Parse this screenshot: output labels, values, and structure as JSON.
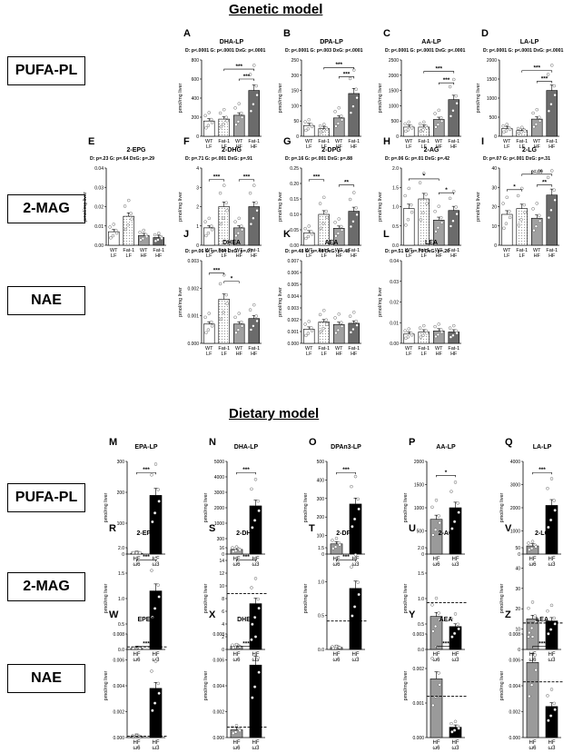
{
  "titles": {
    "genetic": "Genetic model",
    "dietary": "Dietary model"
  },
  "row_labels": {
    "r1": "PUFA-PL",
    "r2": "2-MAG",
    "r3": "NAE",
    "r4": "PUFA-PL",
    "r5": "2-MAG",
    "r6": "NAE"
  },
  "chart_data": [
    {
      "letter": "A",
      "type": "bar",
      "title": "DHA-LP",
      "stats": "D: p<.0001   G: p<.0001   DxG: p<.0001",
      "ylabel": "pmol/mg liver",
      "yticks": [
        "0",
        "200",
        "400",
        "600",
        "800"
      ],
      "ylim": [
        0,
        800
      ],
      "categories": [
        "WT LF",
        "Fat-1 LF",
        "WT HF",
        "Fat-1 HF"
      ],
      "values": [
        160,
        180,
        220,
        480
      ],
      "sig": [
        {
          "label": "***",
          "from": 2,
          "to": 3,
          "level": 0.75
        },
        {
          "label": "***",
          "from": 1,
          "to": 3,
          "level": 0.88
        }
      ]
    },
    {
      "letter": "B",
      "type": "bar",
      "title": "DPA-LP",
      "stats": "D: p<.0001   G: p=.003   DxG: p<.0001",
      "ylabel": "pmol/mg liver",
      "yticks": [
        "0",
        "50",
        "100",
        "150",
        "200",
        "250"
      ],
      "ylim": [
        0,
        250
      ],
      "categories": [
        "WT LF",
        "Fat-1 LF",
        "WT HF",
        "Fat-1 HF"
      ],
      "values": [
        35,
        25,
        60,
        140
      ],
      "sig": [
        {
          "label": "***",
          "from": 2,
          "to": 3,
          "level": 0.78
        },
        {
          "label": "***",
          "from": 1,
          "to": 3,
          "level": 0.9
        }
      ]
    },
    {
      "letter": "C",
      "type": "bar",
      "title": "AA-LP",
      "stats": "D: p<.0001   G: p<.0001   DxG: p<.0001",
      "ylabel": "pmol/mg liver",
      "yticks": [
        "0",
        "500",
        "1000",
        "1500",
        "2000",
        "2500"
      ],
      "ylim": [
        0,
        2500
      ],
      "categories": [
        "WT LF",
        "Fat-1 LF",
        "WT HF",
        "Fat-1 HF"
      ],
      "values": [
        300,
        300,
        550,
        1200
      ],
      "sig": [
        {
          "label": "***",
          "from": 2,
          "to": 3,
          "level": 0.7
        },
        {
          "label": "***",
          "from": 1,
          "to": 3,
          "level": 0.85
        }
      ]
    },
    {
      "letter": "D",
      "type": "bar",
      "title": "LA-LP",
      "stats": "D: p<.0001   G: p<.0001   DxG: p<.0001",
      "ylabel": "pmol/mg liver",
      "yticks": [
        "0",
        "500",
        "1000",
        "1500",
        "2000"
      ],
      "ylim": [
        0,
        2000
      ],
      "categories": [
        "WT LF",
        "Fat-1 LF",
        "WT HF",
        "Fat-1 HF"
      ],
      "values": [
        200,
        150,
        450,
        1200
      ],
      "sig": [
        {
          "label": "***",
          "from": 2,
          "to": 3,
          "level": 0.72
        },
        {
          "label": "***",
          "from": 1,
          "to": 3,
          "level": 0.86
        }
      ]
    },
    {
      "letter": "E",
      "type": "bar",
      "title": "2-EPG",
      "stats": "D: p=.23   G: p=.64   DxG: p=.29",
      "ylabel": "pmol/mg liver",
      "yticks": [
        "0.00",
        "0.01",
        "0.02",
        "0.03",
        "0.04"
      ],
      "ylim": [
        0,
        0.04
      ],
      "categories": [
        "WT LF",
        "Fat-1 LF",
        "WT HF",
        "Fat-1 HF"
      ],
      "values": [
        0.007,
        0.015,
        0.005,
        0.004
      ],
      "sig": []
    },
    {
      "letter": "F",
      "type": "bar",
      "title": "2-DHG",
      "stats": "D: p=.71   G: p<.001   DxG: p=.91",
      "ylabel": "pmol/mg liver",
      "yticks": [
        "0",
        "1",
        "2",
        "3",
        "4"
      ],
      "ylim": [
        0,
        4
      ],
      "categories": [
        "WT LF",
        "Fat-1 LF",
        "WT HF",
        "Fat-1 HF"
      ],
      "values": [
        0.9,
        2.0,
        0.9,
        2.0
      ],
      "sig": [
        {
          "label": "***",
          "from": 0,
          "to": 1,
          "level": 0.85
        },
        {
          "label": "***",
          "from": 2,
          "to": 3,
          "level": 0.85
        }
      ]
    },
    {
      "letter": "G",
      "type": "bar",
      "title": "2-DPG",
      "stats": "D: p=.16   G: p<.001   DxG: p=.88",
      "ylabel": "pmol/mg liver",
      "yticks": [
        "0.00",
        "0.05",
        "0.10",
        "0.15",
        "0.20",
        "0.25"
      ],
      "ylim": [
        0,
        0.25
      ],
      "categories": [
        "WT LF",
        "Fat-1 LF",
        "WT HF",
        "Fat-1 HF"
      ],
      "values": [
        0.04,
        0.1,
        0.055,
        0.11
      ],
      "sig": [
        {
          "label": "***",
          "from": 0,
          "to": 1,
          "level": 0.85
        },
        {
          "label": "**",
          "from": 2,
          "to": 3,
          "level": 0.78
        }
      ]
    },
    {
      "letter": "H",
      "type": "bar",
      "title": "2-AG",
      "stats": "D: p=.06   G: p=.01   DxG: p=.42",
      "ylabel": "pmol/mg liver",
      "yticks": [
        "0.0",
        "0.5",
        "1.0",
        "1.5",
        "2.0"
      ],
      "ylim": [
        0,
        2
      ],
      "categories": [
        "WT LF",
        "Fat-1 LF",
        "WT HF",
        "Fat-1 HF"
      ],
      "values": [
        0.95,
        1.2,
        0.65,
        0.9
      ],
      "sig": [
        {
          "label": "*",
          "from": 0,
          "to": 2,
          "level": 0.86
        },
        {
          "label": "*",
          "from": 2,
          "to": 3,
          "level": 0.68
        }
      ]
    },
    {
      "letter": "I",
      "type": "bar",
      "title": "2-LG",
      "stats": "D: p=.07   G: p<.001   DxG: p=.31",
      "ylabel": "pmol/mg liver",
      "yticks": [
        "0",
        "10",
        "20",
        "30",
        "40"
      ],
      "ylim": [
        0,
        40
      ],
      "categories": [
        "WT LF",
        "Fat-1 LF",
        "WT HF",
        "Fat-1 HF"
      ],
      "values": [
        16,
        19,
        14,
        26
      ],
      "sig": [
        {
          "label": "*",
          "from": 0,
          "to": 1,
          "level": 0.72
        },
        {
          "label": "**",
          "from": 2,
          "to": 3,
          "level": 0.78
        },
        {
          "label": "p=.09",
          "from": 1,
          "to": 3,
          "level": 0.92
        }
      ]
    },
    {
      "letter": "J",
      "type": "bar",
      "title": "DHEA",
      "stats": "D: p=.06   G: p=.004   DxG: p=.07",
      "ylabel": "pmol/mg liver",
      "yticks": [
        "0.000",
        "0.001",
        "0.002",
        "0.003"
      ],
      "ylim": [
        0,
        0.003
      ],
      "categories": [
        "WT LF",
        "Fat-1 LF",
        "WT HF",
        "Fat-1 HF"
      ],
      "values": [
        0.0007,
        0.0016,
        0.0007,
        0.0009
      ],
      "sig": [
        {
          "label": "***",
          "from": 0,
          "to": 1,
          "level": 0.85
        },
        {
          "label": "*",
          "from": 1,
          "to": 2,
          "level": 0.75
        }
      ]
    },
    {
      "letter": "K",
      "type": "bar",
      "title": "AEA",
      "stats": "D: p=.48   G: p=.48   DxG: p=.48",
      "ylabel": "pmol/mg liver",
      "yticks": [
        "0.000",
        "0.001",
        "0.002",
        "0.003",
        "0.004",
        "0.005",
        "0.006",
        "0.007"
      ],
      "ylim": [
        0,
        0.007
      ],
      "categories": [
        "WT LF",
        "Fat-1 LF",
        "WT HF",
        "Fat-1 HF"
      ],
      "values": [
        0.0012,
        0.0018,
        0.0016,
        0.0017
      ],
      "sig": []
    },
    {
      "letter": "L",
      "type": "bar",
      "title": "LEA",
      "stats": "D: p=.51   G: p=.70   DxG: p=.26",
      "ylabel": "pmol/mg liver",
      "yticks": [
        "0.00",
        "0.01",
        "0.02",
        "0.03",
        "0.04"
      ],
      "ylim": [
        0,
        0.04
      ],
      "categories": [
        "WT LF",
        "Fat-1 LF",
        "WT HF",
        "Fat-1 HF"
      ],
      "values": [
        0.0045,
        0.0055,
        0.006,
        0.0055
      ],
      "sig": []
    },
    {
      "letter": "M",
      "type": "bar",
      "title": "EPA-LP",
      "ylabel": "pmol/mg liver",
      "yticks": [
        "0",
        "100",
        "200",
        "300"
      ],
      "ylim": [
        0,
        300
      ],
      "categories": [
        "HF ω6",
        "HF ω3"
      ],
      "values": [
        2,
        190
      ],
      "sig": [
        {
          "label": "***",
          "from": 0,
          "to": 1,
          "level": 0.88
        }
      ]
    },
    {
      "letter": "N",
      "type": "bar",
      "title": "DHA-LP",
      "ylabel": "pmol/mg liver",
      "yticks": [
        "0",
        "300",
        "1000",
        "2000",
        "3000",
        "4000",
        "5000"
      ],
      "ylim": [
        0,
        5000
      ],
      "categories": [
        "HF ω6",
        "HF ω3"
      ],
      "values": [
        250,
        2600
      ],
      "sig": [
        {
          "label": "***",
          "from": 0,
          "to": 1,
          "level": 0.88
        }
      ]
    },
    {
      "letter": "O",
      "type": "bar",
      "title": "DPAn3-LP",
      "ylabel": "pmol/mg liver",
      "yticks": [
        "0",
        "100",
        "200",
        "300",
        "400",
        "500"
      ],
      "ylim": [
        0,
        500
      ],
      "categories": [
        "HF ω6",
        "HF ω3"
      ],
      "values": [
        55,
        270
      ],
      "sig": [
        {
          "label": "***",
          "from": 0,
          "to": 1,
          "level": 0.88
        }
      ]
    },
    {
      "letter": "P",
      "type": "bar",
      "title": "AA-LP",
      "ylabel": "pmol/mg liver",
      "yticks": [
        "0",
        "500",
        "1000",
        "1500",
        "2000"
      ],
      "ylim": [
        0,
        2000
      ],
      "categories": [
        "HF ω6",
        "HF ω3"
      ],
      "values": [
        750,
        1000
      ],
      "sig": [
        {
          "label": "*",
          "from": 0,
          "to": 1,
          "level": 0.85
        }
      ]
    },
    {
      "letter": "Q",
      "type": "bar",
      "title": "LA-LP",
      "ylabel": "pmol/mg liver",
      "yticks": [
        "0",
        "1000",
        "2000",
        "3000",
        "4000"
      ],
      "ylim": [
        0,
        4000
      ],
      "categories": [
        "HF ω6",
        "HF ω3"
      ],
      "values": [
        350,
        2100
      ],
      "sig": [
        {
          "label": "***",
          "from": 0,
          "to": 1,
          "level": 0.88
        }
      ]
    },
    {
      "letter": "R",
      "type": "bar",
      "title": "2-EPG",
      "ylabel": "pmol/mg liver",
      "yticks": [
        "0.0",
        "0.5",
        "1.0",
        "1.5",
        "2.0"
      ],
      "ylim": [
        0,
        2.0
      ],
      "categories": [
        "HF ω6",
        "HF ω3"
      ],
      "values": [
        0.02,
        1.15
      ],
      "ref": 0.05,
      "sig": [
        {
          "label": "***",
          "from": 0,
          "to": 1,
          "level": 0.88
        }
      ]
    },
    {
      "letter": "S",
      "type": "bar",
      "title": "2-DHG",
      "ylabel": "pmol/mg liver",
      "yticks": [
        "0",
        "2",
        "4",
        "6",
        "8",
        "10",
        "12",
        "14",
        "16"
      ],
      "ylim": [
        0,
        16
      ],
      "categories": [
        "HF ω6",
        "HF ω3"
      ],
      "values": [
        0.5,
        7.2
      ],
      "ref": 8.8,
      "sig": [
        {
          "label": "***",
          "from": 0,
          "to": 1,
          "level": 0.88
        }
      ]
    },
    {
      "letter": "T",
      "type": "bar",
      "title": "2-DPG",
      "ylabel": "pmol/mg liver",
      "yticks": [
        "0.0",
        "0.5",
        "1.0",
        "1.5"
      ],
      "ylim": [
        0,
        1.5
      ],
      "categories": [
        "HF ω6",
        "HF ω3"
      ],
      "values": [
        0.03,
        0.9
      ],
      "ref": 0.42,
      "sig": [
        {
          "label": "***",
          "from": 0,
          "to": 1,
          "level": 0.88
        }
      ]
    },
    {
      "letter": "U",
      "type": "bar",
      "title": "2-AG",
      "ylabel": "pmol/mg liver",
      "yticks": [
        "0.0",
        "0.5",
        "1.0",
        "1.5",
        "2.0"
      ],
      "ylim": [
        0,
        2.0
      ],
      "categories": [
        "HF ω6",
        "HF ω3"
      ],
      "values": [
        0.65,
        0.45
      ],
      "ref": 0.92,
      "sig": []
    },
    {
      "letter": "V",
      "type": "bar",
      "title": "2-LG",
      "ylabel": "pmol/mg liver",
      "yticks": [
        "0",
        "10",
        "20",
        "30",
        "40",
        "50"
      ],
      "ylim": [
        0,
        50
      ],
      "categories": [
        "HF ω6",
        "HF ω3"
      ],
      "values": [
        15,
        14
      ],
      "ref": 13,
      "sig": []
    },
    {
      "letter": "W",
      "type": "bar",
      "title": "EPEA",
      "ylabel": "pmol/mg liver",
      "yticks": [
        "0.000",
        "0.002",
        "0.004",
        "0.006",
        "0.008"
      ],
      "ylim": [
        0,
        0.008
      ],
      "categories": [
        "HF ω6",
        "HF ω3"
      ],
      "values": [
        0.0001,
        0.0038
      ],
      "ref": 0.0001,
      "sig": [
        {
          "label": "***",
          "from": 0,
          "to": 1,
          "level": 0.88
        }
      ]
    },
    {
      "letter": "X",
      "type": "bar",
      "title": "DHEA",
      "ylabel": "pmol/mg liver",
      "yticks": [
        "0.000",
        "0.002",
        "0.004",
        "0.006",
        "0.008"
      ],
      "ylim": [
        0,
        0.008
      ],
      "categories": [
        "HF ω6",
        "HF ω3"
      ],
      "values": [
        0.0006,
        0.0056
      ],
      "ref": 0.0008,
      "sig": [
        {
          "label": "***",
          "from": 0,
          "to": 1,
          "level": 0.88
        }
      ]
    },
    {
      "letter": "Y",
      "type": "bar",
      "title": "AEA",
      "ylabel": "pmol/mg liver",
      "yticks": [
        "0.000",
        "0.001",
        "0.002",
        "0.003"
      ],
      "ylim": [
        0,
        0.003
      ],
      "categories": [
        "HF ω6",
        "HF ω3"
      ],
      "values": [
        0.0017,
        0.0003
      ],
      "ref": 0.0012,
      "sig": [
        {
          "label": "***",
          "from": 0,
          "to": 1,
          "level": 0.88
        }
      ]
    },
    {
      "letter": "Z",
      "type": "bar",
      "title": "LEA",
      "ylabel": "pmol/mg liver",
      "yticks": [
        "0.000",
        "0.002",
        "0.004",
        "0.006",
        "0.008"
      ],
      "ylim": [
        0,
        0.008
      ],
      "categories": [
        "HF ω6",
        "HF ω3"
      ],
      "values": [
        0.0058,
        0.0024
      ],
      "ref": 0.0043,
      "sig": [
        {
          "label": "***",
          "from": 0,
          "to": 1,
          "level": 0.88
        }
      ]
    }
  ]
}
